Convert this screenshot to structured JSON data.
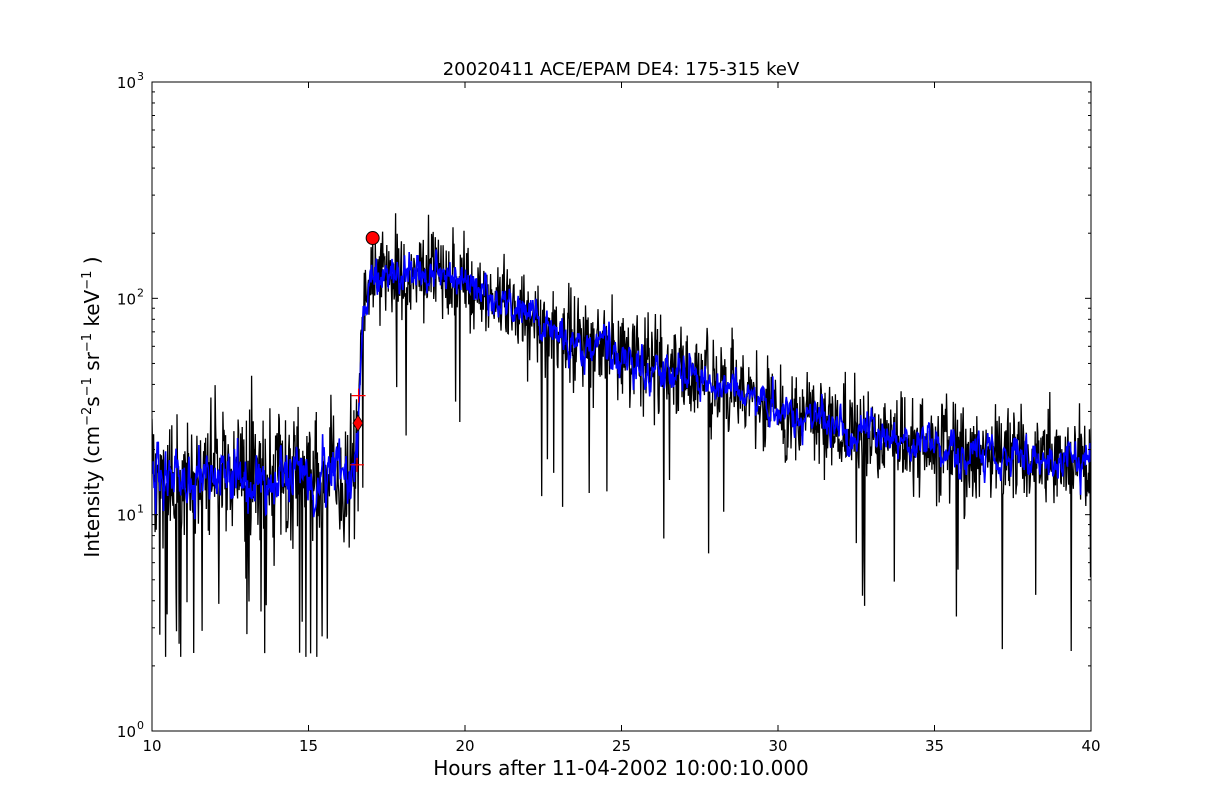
{
  "chart_data": {
    "type": "line",
    "title": "20020411 ACE/EPAM DE4: 175-315 keV",
    "xlabel": "Hours after 11-04-2002 10:00:10.000",
    "ylabel": {
      "prefix": "Intensity (cm",
      "sup1": "−2",
      "mid1": "s",
      "sup2": "−1",
      "mid2": " sr",
      "sup3": "−1",
      "mid3": " keV",
      "sup4": "−1",
      "suffix": " )"
    },
    "xlim": [
      10,
      40
    ],
    "ylim": [
      1,
      1000
    ],
    "yscale": "log",
    "grid": false,
    "x_ticks": [
      10,
      15,
      20,
      25,
      30,
      35,
      40
    ],
    "y_ticks": [
      {
        "value": 1,
        "base": "10",
        "exp": "0"
      },
      {
        "value": 10,
        "base": "10",
        "exp": "1"
      },
      {
        "value": 100,
        "base": "10",
        "exp": "2"
      },
      {
        "value": 1000,
        "base": "10",
        "exp": "3"
      }
    ],
    "series": [
      {
        "style": "raw",
        "color": "#000000",
        "envelope": [
          {
            "x": 10.0,
            "y": 15
          },
          {
            "x": 16.5,
            "y": 15
          },
          {
            "x": 16.6,
            "y": 30
          },
          {
            "x": 16.75,
            "y": 80
          },
          {
            "x": 17.0,
            "y": 130
          },
          {
            "x": 18.0,
            "y": 125
          },
          {
            "x": 19.0,
            "y": 130
          },
          {
            "x": 20.0,
            "y": 115
          },
          {
            "x": 21.0,
            "y": 95
          },
          {
            "x": 22.0,
            "y": 82
          },
          {
            "x": 23.0,
            "y": 70
          },
          {
            "x": 24.0,
            "y": 62
          },
          {
            "x": 25.0,
            "y": 55
          },
          {
            "x": 26.0,
            "y": 48
          },
          {
            "x": 27.0,
            "y": 44
          },
          {
            "x": 28.0,
            "y": 39
          },
          {
            "x": 29.0,
            "y": 35
          },
          {
            "x": 30.0,
            "y": 31
          },
          {
            "x": 31.0,
            "y": 28
          },
          {
            "x": 32.0,
            "y": 25
          },
          {
            "x": 33.0,
            "y": 23
          },
          {
            "x": 34.0,
            "y": 21.5
          },
          {
            "x": 35.0,
            "y": 20.5
          },
          {
            "x": 36.0,
            "y": 19.5
          },
          {
            "x": 37.0,
            "y": 19
          },
          {
            "x": 38.0,
            "y": 18.5
          },
          {
            "x": 39.0,
            "y": 18
          },
          {
            "x": 40.0,
            "y": 17.5
          }
        ],
        "points_per_hour": 60,
        "scatter_pre": 0.32,
        "scatter_post": 0.22,
        "floor": 2.2
      },
      {
        "style": "smoothed",
        "color": "#0000ff",
        "scatter_pre": 0.14,
        "scatter_post": 0.09
      }
    ],
    "markers": [
      {
        "shape": "circle",
        "x": 17.05,
        "y": 190,
        "color": "#ff0000"
      },
      {
        "shape": "diamond",
        "x": 16.58,
        "y": 26.5,
        "color": "#ff0000"
      },
      {
        "shape": "plus",
        "x": 16.6,
        "y": 35.5,
        "color": "#ff0000"
      },
      {
        "shape": "plus",
        "x": 16.55,
        "y": 17,
        "color": "#ff0000"
      }
    ]
  }
}
